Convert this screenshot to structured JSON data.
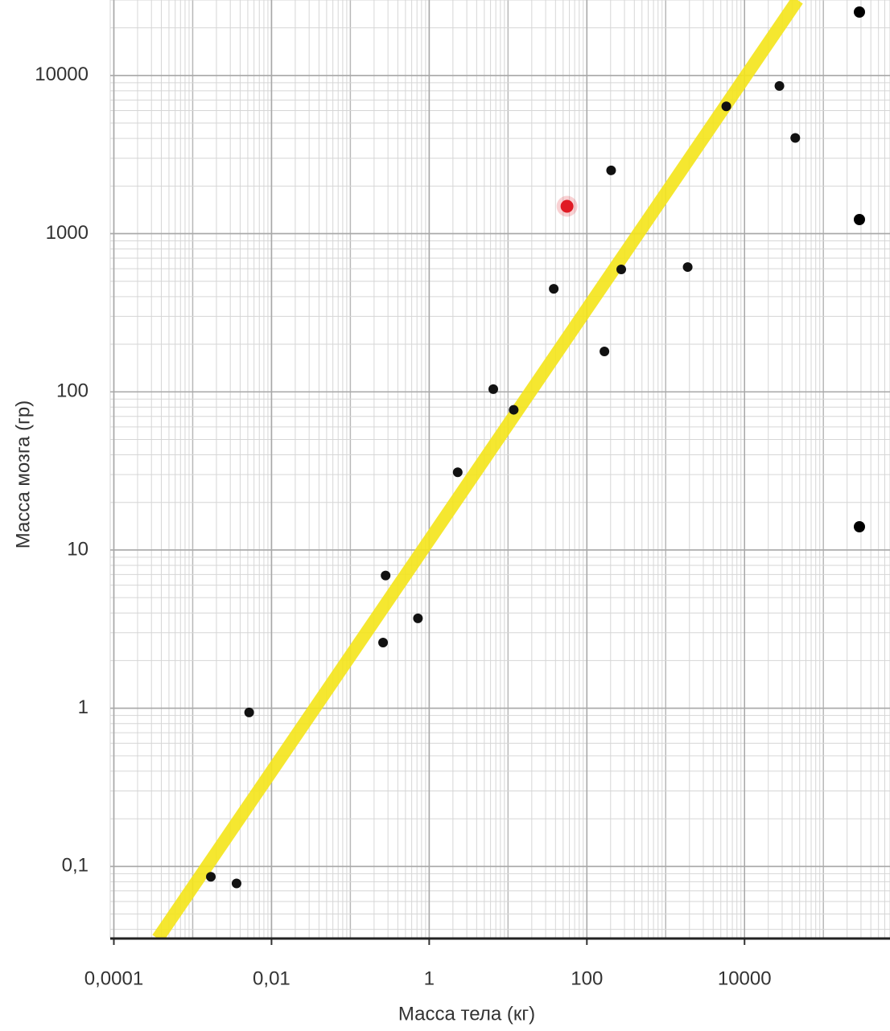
{
  "chart_data": {
    "type": "scatter",
    "x_label": "Масса тела (кг)",
    "y_label": "Масса мозга (гр)",
    "log_x": true,
    "log_y": true,
    "grid": true,
    "xlim": [
      9e-05,
      700000
    ],
    "ylim": [
      0.035,
      30000
    ],
    "xticks": [
      {
        "value": 0.0001,
        "label": "0,0001"
      },
      {
        "value": 0.01,
        "label": "0,01"
      },
      1,
      100,
      10000
    ],
    "yticks": [
      {
        "value": 0.1,
        "label": "0,1"
      },
      1,
      10,
      100,
      1000,
      10000
    ],
    "series": [
      {
        "color": "#111111",
        "highlight_color": "#e01b24",
        "highlight_index": 10,
        "x": [
          0.0017,
          0.0036,
          0.0052,
          0.26,
          0.28,
          0.72,
          2.3,
          6.5,
          11.8,
          38,
          56,
          203,
          167,
          273,
          1900,
          5870,
          27700,
          44000
        ],
        "values": [
          0.086,
          0.078,
          0.94,
          2.6,
          6.9,
          3.7,
          31,
          104,
          77,
          448,
          1490,
          2512,
          180,
          594,
          615,
          6380,
          8580,
          4030
        ]
      }
    ],
    "trend": {
      "color": "#f4e419",
      "x": [
        0.00036,
        47000
      ],
      "values": [
        0.035,
        30000
      ]
    }
  }
}
